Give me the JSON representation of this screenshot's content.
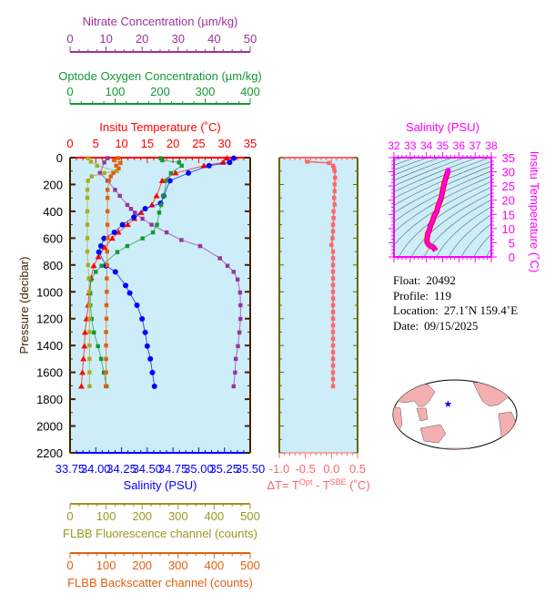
{
  "chart_data": [
    {
      "type": "line",
      "y_axis": {
        "label": "Pressure (decibar)",
        "range": [
          0,
          2200
        ],
        "ticks": [
          "0",
          "200",
          "400",
          "600",
          "800",
          "1000",
          "1200",
          "1400",
          "1600",
          "1800",
          "2000",
          "2200"
        ],
        "inverted": true
      },
      "axes": {
        "nitrate": {
          "label": "Nitrate Concentration (µm/kg)",
          "range": [
            0,
            50
          ],
          "ticks": [
            "0",
            "10",
            "20",
            "30",
            "40",
            "50"
          ],
          "color": "#993399",
          "position": "top"
        },
        "oxygen": {
          "label": "Optode Oxygen Concentration (µm/kg)",
          "range": [
            0,
            400
          ],
          "ticks": [
            "0",
            "100",
            "200",
            "300",
            "400"
          ],
          "color": "#119933",
          "position": "top"
        },
        "temperature": {
          "label": "Insitu Temperature (˚C)",
          "range": [
            0,
            35
          ],
          "ticks": [
            "0",
            "5",
            "10",
            "15",
            "20",
            "25",
            "30",
            "35"
          ],
          "color": "#ff0000",
          "position": "top"
        },
        "salinity": {
          "label": "Salinity (PSU)",
          "range": [
            33.75,
            35.5
          ],
          "ticks": [
            "33.75",
            "34.00",
            "34.25",
            "34.50",
            "34.75",
            "35.00",
            "35.25",
            "35.50"
          ],
          "color": "#0000ff",
          "position": "bottom"
        },
        "fluorescence": {
          "label": "FLBB Fluorescence channel (counts)",
          "range": [
            0,
            500
          ],
          "ticks": [
            "0",
            "100",
            "200",
            "300",
            "400",
            "500"
          ],
          "color": "#999922",
          "position": "bottom"
        },
        "backscatter": {
          "label": "FLBB Backscatter channel (counts)",
          "range": [
            0,
            500
          ],
          "ticks": [
            "0",
            "100",
            "200",
            "300",
            "400",
            "500"
          ],
          "color": "#e06010",
          "position": "bottom"
        }
      },
      "background": "#cdeef8",
      "series": [
        {
          "axis": "temperature",
          "color": "#ff0000",
          "marker": "triangle",
          "pressure": [
            4,
            36,
            60,
            115,
            172,
            285,
            353,
            410,
            455,
            500,
            557,
            602,
            670,
            740,
            806,
            896,
            1009,
            1100,
            1202,
            1303,
            1405,
            1500,
            1602,
            1704
          ],
          "values": [
            30.5,
            29.7,
            26,
            20.5,
            17.9,
            16.8,
            15.9,
            13.8,
            12.5,
            11.2,
            9.4,
            8.2,
            6.7,
            5.5,
            4.6,
            4.1,
            3.7,
            3.5,
            3.2,
            2.9,
            2.8,
            2.6,
            2.4,
            2.2
          ]
        },
        {
          "axis": "salinity",
          "color": "#0000ff",
          "marker": "circle",
          "pressure": [
            4,
            36,
            60,
            115,
            172,
            285,
            340,
            380,
            444,
            500,
            557,
            602,
            659,
            704,
            806,
            851,
            953,
            1009,
            1100,
            1202,
            1303,
            1405,
            1500,
            1602,
            1704
          ],
          "values": [
            35.34,
            35.3,
            35.1,
            34.9,
            34.72,
            34.66,
            34.63,
            34.48,
            34.37,
            34.26,
            34.18,
            34.08,
            34.05,
            34.03,
            34.1,
            34.19,
            34.29,
            34.33,
            34.4,
            34.45,
            34.48,
            34.5,
            34.53,
            34.55,
            34.57
          ]
        },
        {
          "axis": "oxygen",
          "color": "#119933",
          "marker": "square",
          "pressure": [
            4,
            20,
            36,
            60,
            115,
            172,
            285,
            353,
            410,
            500,
            557,
            602,
            659,
            704,
            806,
            851,
            910,
            1009,
            1100,
            1202,
            1303,
            1405,
            1500,
            1602,
            1704
          ],
          "values": [
            201,
            205,
            242,
            248,
            224,
            214,
            208,
            202,
            198,
            193,
            184,
            161,
            127,
            105,
            70,
            57,
            46,
            45,
            45,
            48,
            53,
            62,
            69,
            75,
            81
          ]
        },
        {
          "axis": "nitrate",
          "color": "#993399",
          "marker": "square",
          "pressure": [
            4,
            36,
            115,
            172,
            240,
            285,
            353,
            382,
            410,
            455,
            500,
            557,
            614,
            659,
            750,
            806,
            851,
            908,
            1005,
            1100,
            1202,
            1303,
            1405,
            1500,
            1602,
            1704
          ],
          "values": [
            10.4,
            9.5,
            8.3,
            10.4,
            12.5,
            13.8,
            15.9,
            16.9,
            18,
            20.1,
            22.6,
            26.8,
            30.9,
            36.1,
            41.6,
            43.7,
            45.4,
            46.5,
            47.2,
            47.3,
            47.3,
            47,
            46.6,
            46,
            45.8,
            45.4
          ]
        },
        {
          "axis": "fluorescence",
          "color": "#aaaa22",
          "marker": "square",
          "pressure": [
            4,
            30,
            60,
            100,
            115,
            140,
            172,
            240,
            300,
            400,
            500,
            600,
            700,
            800,
            900,
            1000,
            1100,
            1200,
            1300,
            1400,
            1500,
            1600,
            1704
          ],
          "values": [
            50,
            58,
            75,
            130,
            95,
            60,
            50,
            48,
            48,
            48,
            48,
            48,
            48,
            50,
            52,
            53,
            54,
            54,
            54,
            54,
            54,
            54,
            54
          ]
        },
        {
          "axis": "backscatter",
          "color": "#e06010",
          "marker": "square",
          "pressure": [
            4,
            20,
            40,
            60,
            80,
            115,
            140,
            172,
            240,
            300,
            400,
            500,
            600,
            700,
            800,
            900,
            1000,
            1100,
            1200,
            1300,
            1400,
            1500,
            1600,
            1704
          ],
          "values": [
            134,
            122,
            140,
            128,
            135,
            120,
            113,
            108,
            104,
            104,
            104,
            104,
            104,
            103,
            103,
            102,
            102,
            101,
            101,
            100,
            100,
            100,
            100,
            99
          ]
        }
      ]
    },
    {
      "type": "line",
      "x_axis": {
        "label": "ΔT= T",
        "label_sup1": "Opt",
        "label_mid": " - T",
        "label_sup2": "SBE",
        "label_end": " (˚C)",
        "range": [
          -1.0,
          0.5
        ],
        "ticks": [
          "-1.0",
          "-0.5",
          "0.0",
          "0.5"
        ],
        "color": "#ff6666"
      },
      "y_axis": {
        "range": [
          0,
          2200
        ]
      },
      "series": [
        {
          "color": "#ff6666",
          "marker": "square",
          "pressure": [
            30,
            40,
            60,
            80,
            100,
            150,
            200,
            250,
            300,
            350,
            400,
            450,
            500,
            550,
            600,
            650,
            700,
            750,
            800,
            850,
            900,
            950,
            1000,
            1050,
            1100,
            1150,
            1200,
            1250,
            1300,
            1350,
            1400,
            1450,
            1500,
            1550,
            1600,
            1650,
            1704
          ],
          "values": [
            -0.46,
            -0.05,
            0.03,
            0.05,
            0.06,
            0.07,
            0.06,
            0.06,
            0.05,
            0.06,
            0.04,
            0.04,
            0.03,
            0.03,
            0.02,
            0.0,
            0.03,
            0.03,
            0.03,
            0.03,
            0.03,
            0.03,
            0.03,
            0.03,
            0.03,
            0.03,
            0.03,
            0.03,
            0.03,
            0.03,
            0.03,
            0.03,
            0.03,
            0.03,
            0.03,
            0.03,
            0.03
          ]
        }
      ]
    },
    {
      "type": "line",
      "title": "Salinity (PSU)",
      "x_axis": {
        "label": "Salinity (PSU)",
        "range": [
          32,
          38
        ],
        "ticks": [
          "32",
          "33",
          "34",
          "35",
          "36",
          "37",
          "38"
        ]
      },
      "y_axis": {
        "label": "Insitu Temperature (˚C)",
        "range": [
          0,
          35
        ],
        "ticks": [
          "0",
          "5",
          "10",
          "15",
          "20",
          "25",
          "30",
          "35"
        ]
      },
      "color": "#ff00ff",
      "series": [
        {
          "color": "#ff00ff",
          "salinity": [
            35.34,
            35.3,
            35.1,
            34.9,
            34.72,
            34.63,
            34.48,
            34.37,
            34.26,
            34.18,
            34.08,
            34.05,
            34.03,
            34.1,
            34.19,
            34.29,
            34.4,
            34.45,
            34.5,
            34.55,
            34.57
          ],
          "temperature": [
            30.5,
            29.7,
            26,
            20.5,
            17.9,
            15.9,
            14.5,
            12.5,
            11.2,
            9.4,
            8.2,
            6.7,
            5.5,
            4.6,
            4.1,
            3.7,
            3.5,
            3.2,
            2.8,
            2.4,
            2.2
          ]
        }
      ],
      "density_contours": true
    }
  ],
  "info": {
    "float_label": "Float:",
    "float": "20492",
    "profile_label": "Profile:",
    "profile": "119",
    "location_label": "Location:",
    "location": "27.1˚N  159.4˚E",
    "date_label": "Date:",
    "date": "09/15/2025"
  },
  "map": {
    "icon": "world-map",
    "marker": "star",
    "marker_color": "#0000ff",
    "land_color": "#f4b0b0",
    "ocean_color": "#ffffff"
  }
}
